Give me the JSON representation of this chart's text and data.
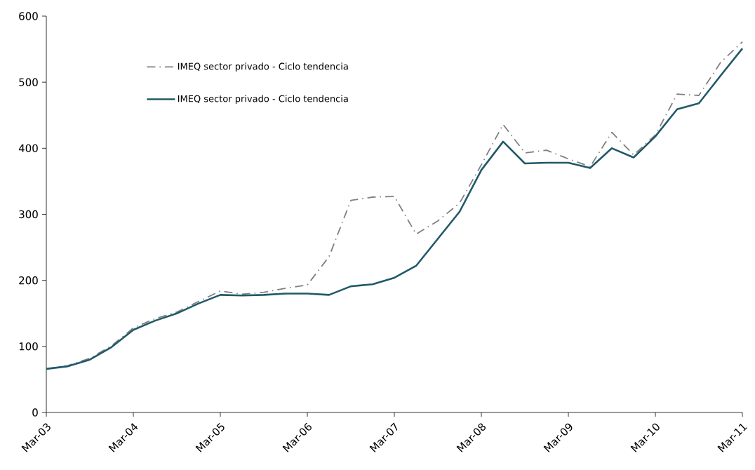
{
  "chart_data": {
    "type": "line",
    "x": [
      "2003-03",
      "2003-06",
      "2003-09",
      "2003-12",
      "2004-03",
      "2004-06",
      "2004-09",
      "2004-12",
      "2005-03",
      "2005-06",
      "2005-09",
      "2005-12",
      "2006-03",
      "2006-06",
      "2006-09",
      "2006-12",
      "2007-03",
      "2007-06",
      "2007-09",
      "2007-12",
      "2008-03",
      "2008-06",
      "2008-09",
      "2008-12",
      "2009-03",
      "2009-06",
      "2009-09",
      "2009-12",
      "2010-03",
      "2010-06",
      "2010-09",
      "2010-12",
      "2011-03"
    ],
    "series": [
      {
        "name": "IMEQ sector privado  - Ciclo tendencia",
        "color": "#808080",
        "line_style": "dashdot",
        "values": [
          66,
          71,
          82,
          101,
          128,
          142,
          152,
          168,
          184,
          179,
          182,
          188,
          193,
          236,
          321,
          326,
          327,
          270,
          290,
          317,
          375,
          436,
          393,
          397,
          384,
          372,
          424,
          390,
          420,
          482,
          480,
          530,
          561
        ]
      },
      {
        "name": "IMEQ sector privado - Ciclo tendencia",
        "color": "#215968",
        "line_style": "solid",
        "values": [
          66,
          70,
          80,
          99,
          125,
          139,
          150,
          165,
          178,
          177,
          178,
          180,
          180,
          178,
          191,
          194,
          204,
          222,
          263,
          304,
          367,
          410,
          377,
          378,
          378,
          370,
          400,
          386,
          418,
          459,
          468,
          510,
          551
        ]
      }
    ],
    "xlim": [
      "2003-03",
      "2011-03"
    ],
    "xticks": [
      {
        "value": "2003-03",
        "label": "Mar-03"
      },
      {
        "value": "2004-03",
        "label": "Mar-04"
      },
      {
        "value": "2005-03",
        "label": "Mar-05"
      },
      {
        "value": "2006-03",
        "label": "Mar-06"
      },
      {
        "value": "2007-03",
        "label": "Mar-07"
      },
      {
        "value": "2008-03",
        "label": "Mar-08"
      },
      {
        "value": "2009-03",
        "label": "Mar-09"
      },
      {
        "value": "2010-03",
        "label": "Mar-10"
      },
      {
        "value": "2011-03",
        "label": "Mar-11"
      }
    ],
    "ylim": [
      0,
      600
    ],
    "yticks": [
      0,
      100,
      200,
      300,
      400,
      500,
      600
    ],
    "grid": false,
    "legend": "top left",
    "marker": "none"
  }
}
